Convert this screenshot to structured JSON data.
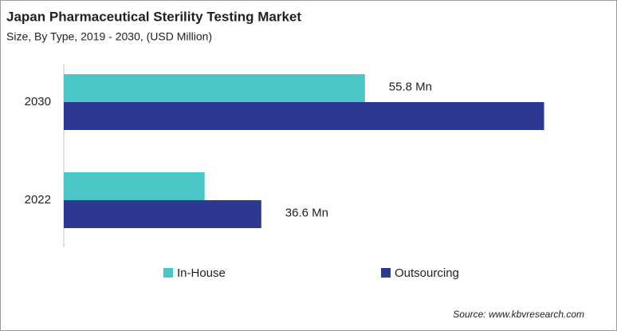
{
  "chart_data": {
    "type": "bar",
    "orientation": "horizontal",
    "title": "Japan Pharmaceutical Sterility Testing Market",
    "subtitle": "Size, By Type, 2019 - 2030, (USD Million)",
    "source": "Source: www.kbvresearch.com",
    "categories": [
      "2030",
      "2022"
    ],
    "series": [
      {
        "name": "In-House",
        "color": "#4ac6c9",
        "values": [
          55.8,
          26.1
        ],
        "value_labels": [
          "55.8 Mn",
          null
        ]
      },
      {
        "name": "Outsourcing",
        "color": "#2d3990",
        "values": [
          89.0,
          36.6
        ],
        "value_labels": [
          null,
          "36.6 Mn"
        ]
      }
    ],
    "legend": "bottom"
  }
}
